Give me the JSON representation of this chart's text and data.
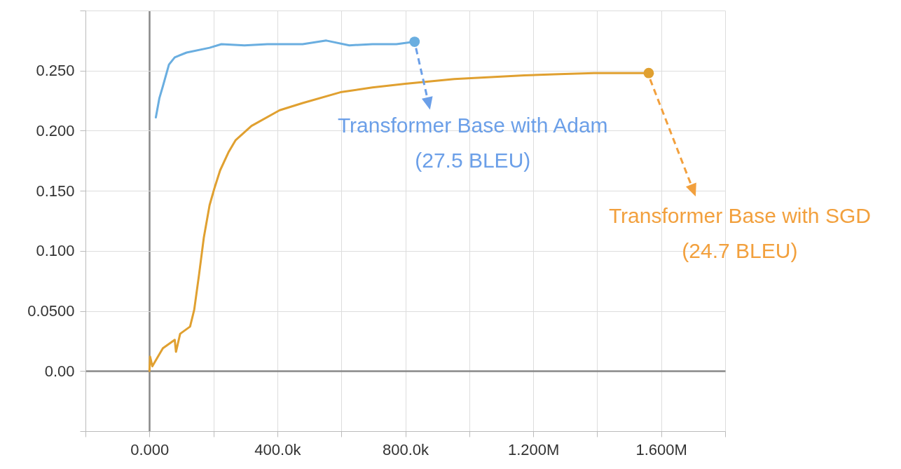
{
  "chart_data": {
    "type": "line",
    "series": [
      {
        "color": "#6aaee0",
        "x": [
          20000,
          31000,
          42000,
          61000,
          79000,
          116000,
          188000,
          225000,
          297000,
          369000,
          479000,
          553000,
          625000,
          697000,
          772000,
          829000
        ],
        "values": [
          0.211,
          0.227,
          0.237,
          0.255,
          0.261,
          0.265,
          0.269,
          0.272,
          0.271,
          0.272,
          0.272,
          0.275,
          0.271,
          0.272,
          0.272,
          0.274
        ]
      },
      {
        "color": "#e0a030",
        "x": [
          0,
          2000,
          9000,
          42000,
          79000,
          83000,
          96000,
          127000,
          140000,
          155000,
          170000,
          188000,
          203000,
          221000,
          247000,
          269000,
          319000,
          407000,
          479000,
          597000,
          697000,
          800000,
          953000,
          1172000,
          1281000,
          1390000,
          1561000
        ],
        "values": [
          0,
          0.012,
          0.004,
          0.019,
          0.026,
          0.016,
          0.031,
          0.037,
          0.051,
          0.08,
          0.111,
          0.138,
          0.152,
          0.167,
          0.182,
          0.192,
          0.204,
          0.217,
          0.223,
          0.232,
          0.236,
          0.239,
          0.243,
          0.246,
          0.247,
          0.248,
          0.248
        ]
      }
    ],
    "xlim": [
      -200000,
      1800000
    ],
    "xticks": [
      {
        "value": -200000,
        "label": null
      },
      {
        "value": 0,
        "label": "0.000"
      },
      {
        "value": 200000,
        "label": null
      },
      {
        "value": 400000,
        "label": "400.0k"
      },
      {
        "value": 600000,
        "label": null
      },
      {
        "value": 800000,
        "label": "800.0k"
      },
      {
        "value": 1000000,
        "label": null
      },
      {
        "value": 1200000,
        "label": "1.200M"
      },
      {
        "value": 1400000,
        "label": null
      },
      {
        "value": 1600000,
        "label": "1.600M"
      },
      {
        "value": 1800000,
        "label": null
      }
    ],
    "ylim": [
      -0.05,
      0.3
    ],
    "yticks": [
      {
        "value": -0.05,
        "label": null
      },
      {
        "value": 0,
        "label": "0.00"
      },
      {
        "value": 0.05,
        "label": "0.0500"
      },
      {
        "value": 0.1,
        "label": "0.100"
      },
      {
        "value": 0.15,
        "label": "0.150"
      },
      {
        "value": 0.2,
        "label": "0.200"
      },
      {
        "value": 0.25,
        "label": "0.250"
      },
      {
        "value": 0.3,
        "label": null
      }
    ],
    "grid": true,
    "annotations": [
      {
        "text": "Transformer Base with Adam\n(27.5 BLEU)",
        "x": 829000,
        "y": 0.274
      },
      {
        "text": "Transformer Base with SGD\n(24.7 BLEU)",
        "x": 1561000,
        "y": 0.248
      }
    ]
  }
}
